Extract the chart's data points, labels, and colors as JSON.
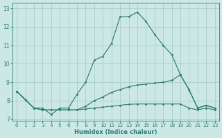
{
  "xlabel": "Humidex (Indice chaleur)",
  "background_color": "#cce8e6",
  "grid_color": "#aaccca",
  "line_color": "#2e7d6e",
  "xlim": [
    -0.5,
    23.5
  ],
  "ylim": [
    6.9,
    13.3
  ],
  "xticks": [
    0,
    1,
    2,
    3,
    4,
    5,
    6,
    7,
    8,
    9,
    10,
    11,
    12,
    13,
    14,
    15,
    16,
    17,
    18,
    19,
    20,
    21,
    22,
    23
  ],
  "yticks": [
    7,
    8,
    9,
    10,
    11,
    12,
    13
  ],
  "series": [
    {
      "x": [
        0,
        1,
        2,
        3,
        4,
        5,
        6,
        7,
        8,
        9,
        10,
        11,
        12,
        13,
        14,
        15,
        16,
        17,
        18,
        19,
        20,
        21,
        22,
        23
      ],
      "y": [
        8.5,
        8.05,
        7.6,
        7.6,
        7.25,
        7.6,
        7.6,
        8.35,
        9.0,
        10.2,
        10.4,
        11.1,
        12.55,
        12.55,
        12.8,
        12.3,
        11.6,
        11.0,
        10.5,
        9.4,
        8.6,
        7.6,
        7.75,
        7.6
      ]
    },
    {
      "x": [
        0,
        1,
        2,
        3,
        4,
        5,
        6,
        7,
        8,
        9,
        10,
        11,
        12,
        13,
        14,
        15,
        16,
        17,
        18,
        19,
        20,
        21,
        22,
        23
      ],
      "y": [
        8.5,
        8.05,
        7.6,
        7.5,
        7.5,
        7.5,
        7.5,
        7.5,
        7.7,
        8.0,
        8.2,
        8.45,
        8.6,
        8.75,
        8.85,
        8.9,
        8.95,
        9.0,
        9.1,
        9.4,
        8.6,
        7.6,
        7.75,
        7.6
      ]
    },
    {
      "x": [
        0,
        1,
        2,
        3,
        4,
        5,
        6,
        7,
        8,
        9,
        10,
        11,
        12,
        13,
        14,
        15,
        16,
        17,
        18,
        19,
        20,
        21,
        22,
        23
      ],
      "y": [
        8.5,
        8.05,
        7.6,
        7.5,
        7.5,
        7.5,
        7.5,
        7.5,
        7.55,
        7.6,
        7.65,
        7.7,
        7.75,
        7.8,
        7.82,
        7.82,
        7.82,
        7.82,
        7.82,
        7.82,
        7.6,
        7.5,
        7.6,
        7.5
      ]
    }
  ]
}
